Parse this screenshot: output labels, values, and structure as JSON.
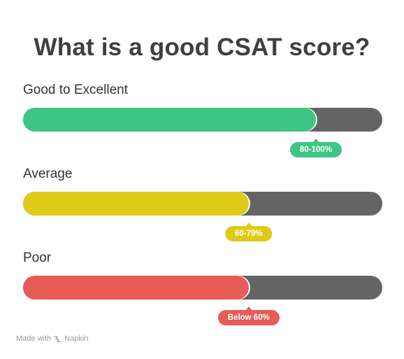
{
  "title": "What is a good CSAT score?",
  "rows": [
    {
      "label": "Good to Excellent",
      "badge": "80-100%",
      "fill_fraction": 0.815,
      "color": "#3ec585"
    },
    {
      "label": "Average",
      "badge": "60-79%",
      "fill_fraction": 0.628,
      "color": "#dfca17"
    },
    {
      "label": "Poor",
      "badge": "Below 60%",
      "fill_fraction": 0.628,
      "color": "#e85b57"
    }
  ],
  "track_color": "#646464",
  "footer": {
    "made_with": "Made with",
    "brand": "Napkin",
    "icon": "napkin-logo-icon"
  }
}
